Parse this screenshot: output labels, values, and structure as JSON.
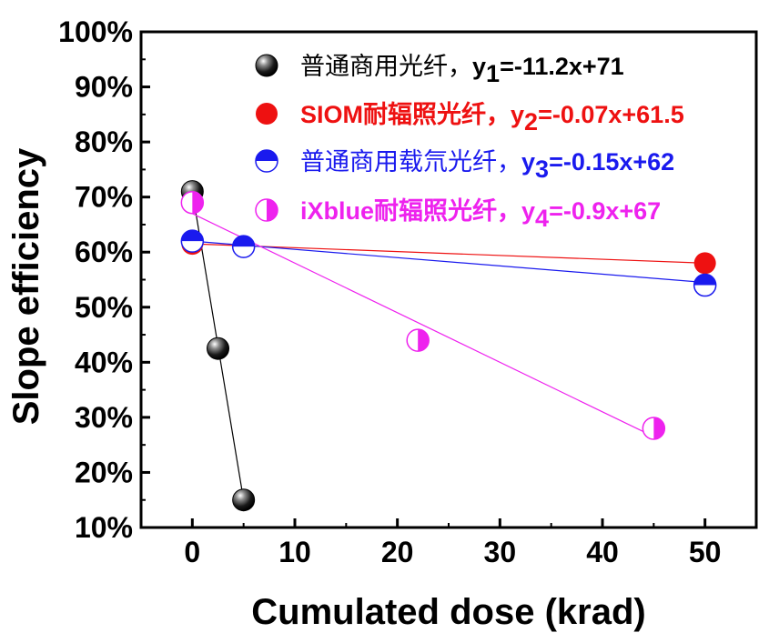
{
  "chart_data": {
    "type": "scatter",
    "xlabel": "Cumulated dose (krad)",
    "ylabel": "Slope efficiency",
    "xlim": [
      -5,
      55
    ],
    "ylim": [
      10,
      100
    ],
    "x_ticks": [
      0,
      10,
      20,
      30,
      40,
      50
    ],
    "y_ticks": [
      10,
      20,
      30,
      40,
      50,
      60,
      70,
      80,
      90,
      100
    ],
    "x_tick_labels": [
      "0",
      "10",
      "20",
      "30",
      "40",
      "50"
    ],
    "y_tick_labels": [
      "10%",
      "20%",
      "30%",
      "40%",
      "50%",
      "60%",
      "70%",
      "80%",
      "90%",
      "100%"
    ],
    "legend_position": "top-right",
    "series": [
      {
        "name": "普通商用光纤",
        "equation_prefix": "y",
        "equation_subscript": "1",
        "equation_suffix": "=-11.2x+71",
        "color": "#000000",
        "marker": "sphere-black",
        "x": [
          0,
          2.5,
          5
        ],
        "y": [
          71,
          42.5,
          15
        ],
        "fit": {
          "slope": -11.2,
          "intercept": 71,
          "x_range": [
            0,
            5
          ]
        }
      },
      {
        "name": "SIOM耐辐照光纤",
        "equation_prefix": "y",
        "equation_subscript": "2",
        "equation_suffix": "=-0.07x+61.5",
        "color": "#ee1111",
        "marker": "filled-red-circle",
        "x": [
          0,
          5,
          50
        ],
        "y": [
          61.5,
          61,
          58
        ],
        "fit": {
          "slope": -0.07,
          "intercept": 61.5,
          "x_range": [
            0,
            50
          ]
        }
      },
      {
        "name": "普通商用载氘光纤",
        "equation_prefix": "y",
        "equation_subscript": "3",
        "equation_suffix": "=-0.15x+62",
        "color": "#1a1aee",
        "marker": "half-top-blue-circle",
        "x": [
          0,
          5,
          50
        ],
        "y": [
          62,
          61,
          54
        ],
        "fit": {
          "slope": -0.15,
          "intercept": 62,
          "x_range": [
            0,
            50
          ]
        }
      },
      {
        "name": "iXblue耐辐照光纤",
        "equation_prefix": "y",
        "equation_subscript": "4",
        "equation_suffix": "=-0.9x+67",
        "color": "#ee22ee",
        "marker": "half-right-magenta-circle",
        "x": [
          0,
          22,
          45
        ],
        "y": [
          69,
          44,
          28
        ],
        "fit": {
          "slope": -0.9,
          "intercept": 67,
          "x_range": [
            0,
            45
          ]
        }
      }
    ]
  }
}
